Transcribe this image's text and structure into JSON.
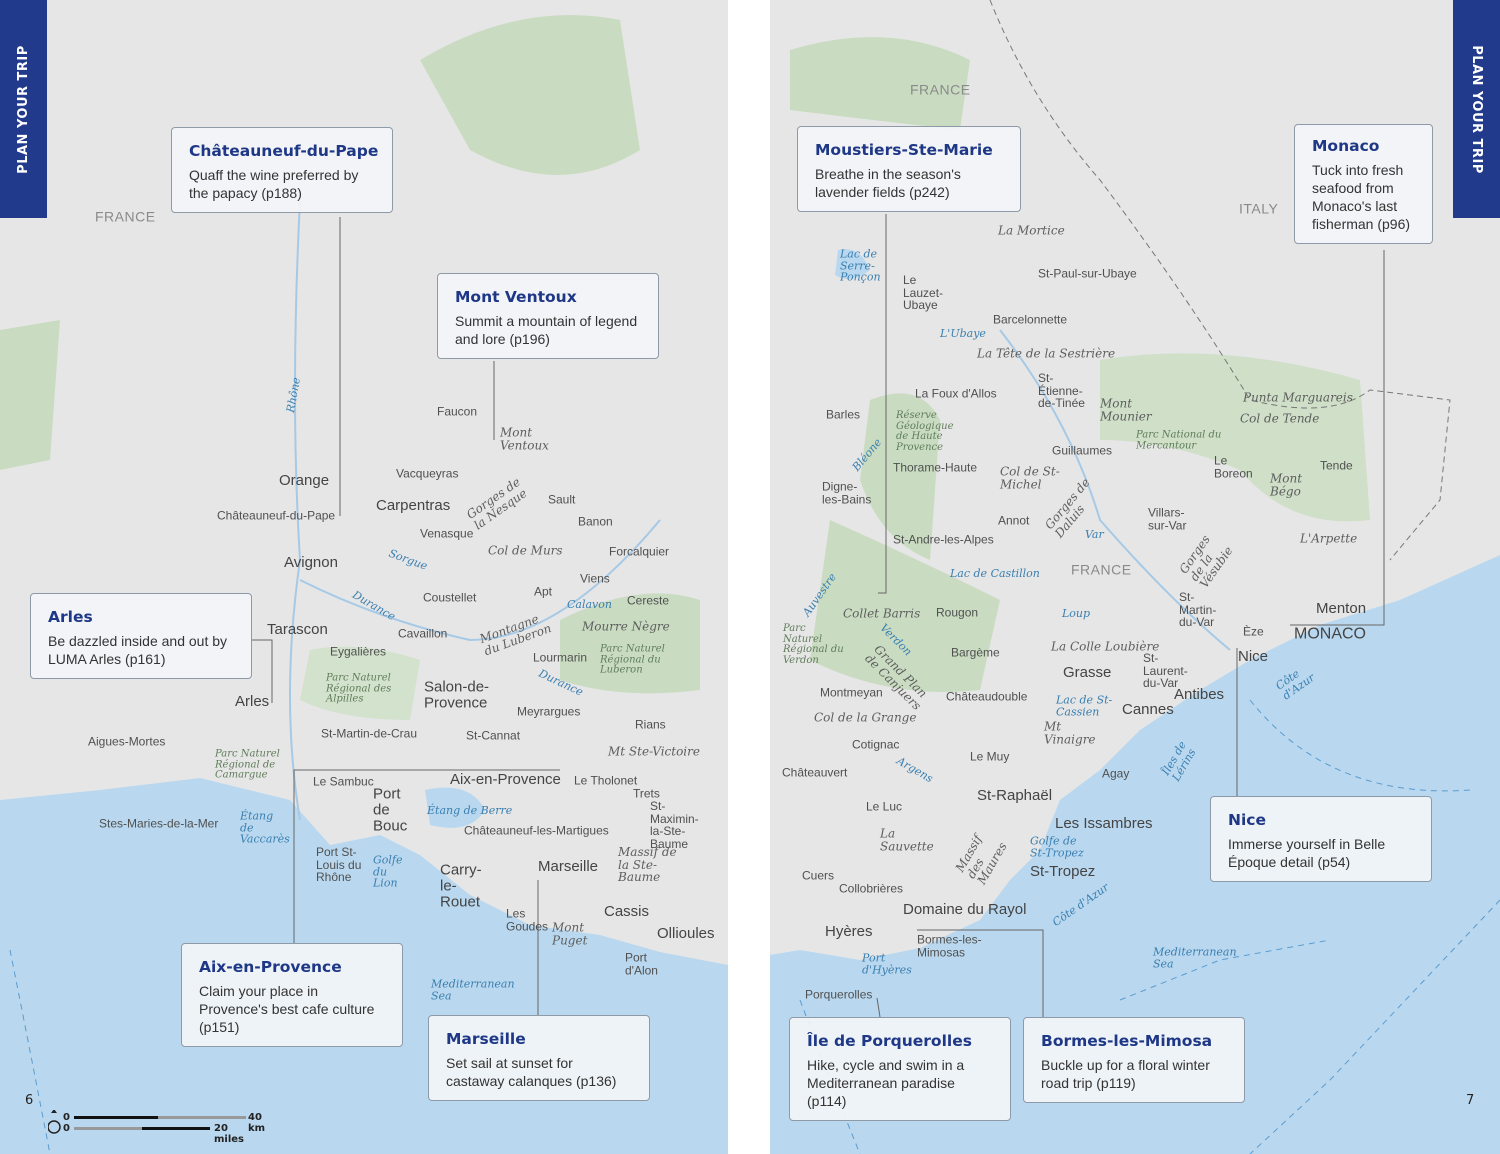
{
  "colors": {
    "sea": "#b9d8ef",
    "land": "#e6e6e6",
    "park": "#c9dcc2",
    "accent": "#213a8c",
    "callout_border": "#8e9aa8"
  },
  "side_tab_label": "PLAN YOUR TRIP",
  "left_page": {
    "page_number": "6",
    "scale": {
      "km": "40 km",
      "miles": "20 miles",
      "zero": "0"
    },
    "callouts": [
      {
        "title": "Châteauneuf-du-Pape",
        "text": "Quaff the wine preferred by the papacy (p188)"
      },
      {
        "title": "Mont Ventoux",
        "text": "Summit a mountain of legend and lore (p196)"
      },
      {
        "title": "Arles",
        "text": "Be dazzled inside and out by LUMA Arles (p161)"
      },
      {
        "title": "Aix-en-Provence",
        "text": "Claim your place in Provence's best cafe culture (p151)"
      },
      {
        "title": "Marseille",
        "text": "Set sail at sunset for castaway calanques (p136)"
      }
    ],
    "labels": [
      {
        "text": "FRANCE",
        "kind": "region"
      },
      {
        "text": "Rhône",
        "kind": "water"
      },
      {
        "text": "Faucon",
        "kind": "town"
      },
      {
        "text": "Mont Ventoux",
        "kind": "mountain"
      },
      {
        "text": "Vacqueyras",
        "kind": "town"
      },
      {
        "text": "Orange",
        "kind": "major"
      },
      {
        "text": "Carpentras",
        "kind": "major"
      },
      {
        "text": "Gorges de la Nesque",
        "kind": "mountain"
      },
      {
        "text": "Sault",
        "kind": "town"
      },
      {
        "text": "Châteauneuf-du-Pape",
        "kind": "town"
      },
      {
        "text": "Venasque",
        "kind": "town"
      },
      {
        "text": "Banon",
        "kind": "town"
      },
      {
        "text": "Col de Murs",
        "kind": "mountain"
      },
      {
        "text": "Forcalquier",
        "kind": "town"
      },
      {
        "text": "Avignon",
        "kind": "major"
      },
      {
        "text": "Sorgue",
        "kind": "water"
      },
      {
        "text": "Viens",
        "kind": "town"
      },
      {
        "text": "Durance",
        "kind": "water"
      },
      {
        "text": "Coustellet",
        "kind": "town"
      },
      {
        "text": "Apt",
        "kind": "town"
      },
      {
        "text": "Calavon",
        "kind": "water"
      },
      {
        "text": "Cereste",
        "kind": "town"
      },
      {
        "text": "Tarascon",
        "kind": "major"
      },
      {
        "text": "Cavaillon",
        "kind": "town"
      },
      {
        "text": "Montagne du Luberon",
        "kind": "mountain"
      },
      {
        "text": "Mourre Nègre",
        "kind": "mountain"
      },
      {
        "text": "Eygalières",
        "kind": "town"
      },
      {
        "text": "Parc Naturel Régional du Luberon",
        "kind": "park"
      },
      {
        "text": "Lourmarin",
        "kind": "town"
      },
      {
        "text": "Parc Naturel Régional des Alpilles",
        "kind": "park"
      },
      {
        "text": "Salon-de-Provence",
        "kind": "major"
      },
      {
        "text": "Durance",
        "kind": "water"
      },
      {
        "text": "Arles",
        "kind": "major"
      },
      {
        "text": "Meyrargues",
        "kind": "town"
      },
      {
        "text": "Rians",
        "kind": "town"
      },
      {
        "text": "St-Martin-de-Crau",
        "kind": "town"
      },
      {
        "text": "St-Cannat",
        "kind": "town"
      },
      {
        "text": "Aigues-Mortes",
        "kind": "town"
      },
      {
        "text": "Parc Naturel Régional de Camargue",
        "kind": "park"
      },
      {
        "text": "Mt Ste-Victoire",
        "kind": "mountain"
      },
      {
        "text": "Aix-en-Provence",
        "kind": "major"
      },
      {
        "text": "Le Tholonet",
        "kind": "town"
      },
      {
        "text": "Le Sambuc",
        "kind": "town"
      },
      {
        "text": "Trets",
        "kind": "town"
      },
      {
        "text": "Port de Bouc",
        "kind": "major"
      },
      {
        "text": "Étang de Berre",
        "kind": "water"
      },
      {
        "text": "St-Maximin-la-Ste-Baume",
        "kind": "town"
      },
      {
        "text": "Stes-Maries-de-la-Mer",
        "kind": "town"
      },
      {
        "text": "Étang de Vaccarès",
        "kind": "water"
      },
      {
        "text": "Châteauneuf-les-Martigues",
        "kind": "town"
      },
      {
        "text": "Port St-Louis du Rhône",
        "kind": "town"
      },
      {
        "text": "Golfe du Lion",
        "kind": "water"
      },
      {
        "text": "Marseille",
        "kind": "major"
      },
      {
        "text": "Massif de la Ste-Baume",
        "kind": "mountain"
      },
      {
        "text": "Carry-le-Rouet",
        "kind": "major"
      },
      {
        "text": "Cassis",
        "kind": "major"
      },
      {
        "text": "Les Goudes",
        "kind": "town"
      },
      {
        "text": "Mont Puget",
        "kind": "mountain"
      },
      {
        "text": "Ollioules",
        "kind": "major"
      },
      {
        "text": "Port d'Alon",
        "kind": "town"
      },
      {
        "text": "Mediterranean Sea",
        "kind": "water"
      }
    ]
  },
  "right_page": {
    "page_number": "7",
    "callouts": [
      {
        "title": "Moustiers-Ste-Marie",
        "text": "Breathe in the season's lavender fields (p242)"
      },
      {
        "title": "Monaco",
        "text": "Tuck into fresh seafood from Monaco's last fisherman (p96)"
      },
      {
        "title": "Nice",
        "text": "Immerse yourself in Belle Époque detail (p54)"
      },
      {
        "title": "Île de Porquerolles",
        "text": "Hike, cycle and swim in a Mediterranean paradise (p114)"
      },
      {
        "title": "Bormes-les-Mimosa",
        "text": "Buckle up for a floral winter road trip (p119)"
      }
    ],
    "labels": [
      {
        "text": "FRANCE",
        "kind": "region"
      },
      {
        "text": "ITALY",
        "kind": "region"
      },
      {
        "text": "La Mortice",
        "kind": "mountain"
      },
      {
        "text": "Lac de Serre-Ponçon",
        "kind": "water"
      },
      {
        "text": "St-Paul-sur-Ubaye",
        "kind": "town"
      },
      {
        "text": "Le Lauzet-Ubaye",
        "kind": "town"
      },
      {
        "text": "Barcelonnette",
        "kind": "town"
      },
      {
        "text": "L'Ubaye",
        "kind": "water"
      },
      {
        "text": "La Tête de la Sestrière",
        "kind": "mountain"
      },
      {
        "text": "La Foux d'Allos",
        "kind": "town"
      },
      {
        "text": "St-Étienne-de-Tinée",
        "kind": "town"
      },
      {
        "text": "Mont Mounier",
        "kind": "mountain"
      },
      {
        "text": "Punta Marguareis",
        "kind": "mountain"
      },
      {
        "text": "Col de Tende",
        "kind": "mountain"
      },
      {
        "text": "Barles",
        "kind": "town"
      },
      {
        "text": "Réserve Géologique de Haute Provence",
        "kind": "park"
      },
      {
        "text": "Parc National du Mercantour",
        "kind": "park"
      },
      {
        "text": "Le Boreon",
        "kind": "town"
      },
      {
        "text": "Bléone",
        "kind": "water"
      },
      {
        "text": "Guillaumes",
        "kind": "town"
      },
      {
        "text": "Tende",
        "kind": "town"
      },
      {
        "text": "Thorame-Haute",
        "kind": "town"
      },
      {
        "text": "Col de St-Michel",
        "kind": "mountain"
      },
      {
        "text": "Mont Bégo",
        "kind": "mountain"
      },
      {
        "text": "Digne-les-Bains",
        "kind": "town"
      },
      {
        "text": "Gorges de Daluis",
        "kind": "mountain"
      },
      {
        "text": "Villars-sur-Var",
        "kind": "town"
      },
      {
        "text": "Annot",
        "kind": "town"
      },
      {
        "text": "Var",
        "kind": "water"
      },
      {
        "text": "L'Arpette",
        "kind": "mountain"
      },
      {
        "text": "St-Andre-les-Alpes",
        "kind": "town"
      },
      {
        "text": "Lac de Castillon",
        "kind": "water"
      },
      {
        "text": "FRANCE",
        "kind": "region"
      },
      {
        "text": "Gorges de la Vésubie",
        "kind": "mountain"
      },
      {
        "text": "Auvestre",
        "kind": "water"
      },
      {
        "text": "Collet Barris",
        "kind": "mountain"
      },
      {
        "text": "Rougon",
        "kind": "town"
      },
      {
        "text": "St-Martin-du-Var",
        "kind": "town"
      },
      {
        "text": "Loup",
        "kind": "water"
      },
      {
        "text": "Menton",
        "kind": "major"
      },
      {
        "text": "MONACO",
        "kind": "country"
      },
      {
        "text": "Èze",
        "kind": "town"
      },
      {
        "text": "Parc Naturel Régional du Verdon",
        "kind": "park"
      },
      {
        "text": "Verdon",
        "kind": "water"
      },
      {
        "text": "Grand Plan de Canjuers",
        "kind": "mountain"
      },
      {
        "text": "Bargème",
        "kind": "town"
      },
      {
        "text": "La Colle Loubière",
        "kind": "mountain"
      },
      {
        "text": "Nice",
        "kind": "major"
      },
      {
        "text": "St-Laurent-du-Var",
        "kind": "town"
      },
      {
        "text": "Grasse",
        "kind": "major"
      },
      {
        "text": "Côte d'Azur",
        "kind": "water"
      },
      {
        "text": "Montmeyan",
        "kind": "town"
      },
      {
        "text": "Antibes",
        "kind": "major"
      },
      {
        "text": "Châteaudouble",
        "kind": "town"
      },
      {
        "text": "Lac de St-Cassien",
        "kind": "water"
      },
      {
        "text": "Cannes",
        "kind": "major"
      },
      {
        "text": "Col de la Grange",
        "kind": "mountain"
      },
      {
        "text": "Mt Vinaigre",
        "kind": "mountain"
      },
      {
        "text": "Cotignac",
        "kind": "town"
      },
      {
        "text": "Îles de Lérins",
        "kind": "water"
      },
      {
        "text": "Le Muy",
        "kind": "town"
      },
      {
        "text": "Argens",
        "kind": "water"
      },
      {
        "text": "Agay",
        "kind": "town"
      },
      {
        "text": "Châteauvert",
        "kind": "town"
      },
      {
        "text": "St-Raphaël",
        "kind": "major"
      },
      {
        "text": "Le Luc",
        "kind": "town"
      },
      {
        "text": "Les Issambres",
        "kind": "major"
      },
      {
        "text": "La Sauvette",
        "kind": "mountain"
      },
      {
        "text": "Golfe de St-Tropez",
        "kind": "water"
      },
      {
        "text": "Massif des Maures",
        "kind": "mountain"
      },
      {
        "text": "St-Tropez",
        "kind": "major"
      },
      {
        "text": "Cuers",
        "kind": "town"
      },
      {
        "text": "Collobrières",
        "kind": "town"
      },
      {
        "text": "Côte d'Azur",
        "kind": "water"
      },
      {
        "text": "Domaine du Rayol",
        "kind": "major"
      },
      {
        "text": "Hyères",
        "kind": "major"
      },
      {
        "text": "Bormes-les-Mimosas",
        "kind": "town"
      },
      {
        "text": "Mediterranean Sea",
        "kind": "water"
      },
      {
        "text": "Port d'Hyères",
        "kind": "water"
      },
      {
        "text": "Porquerolles",
        "kind": "town"
      }
    ]
  }
}
